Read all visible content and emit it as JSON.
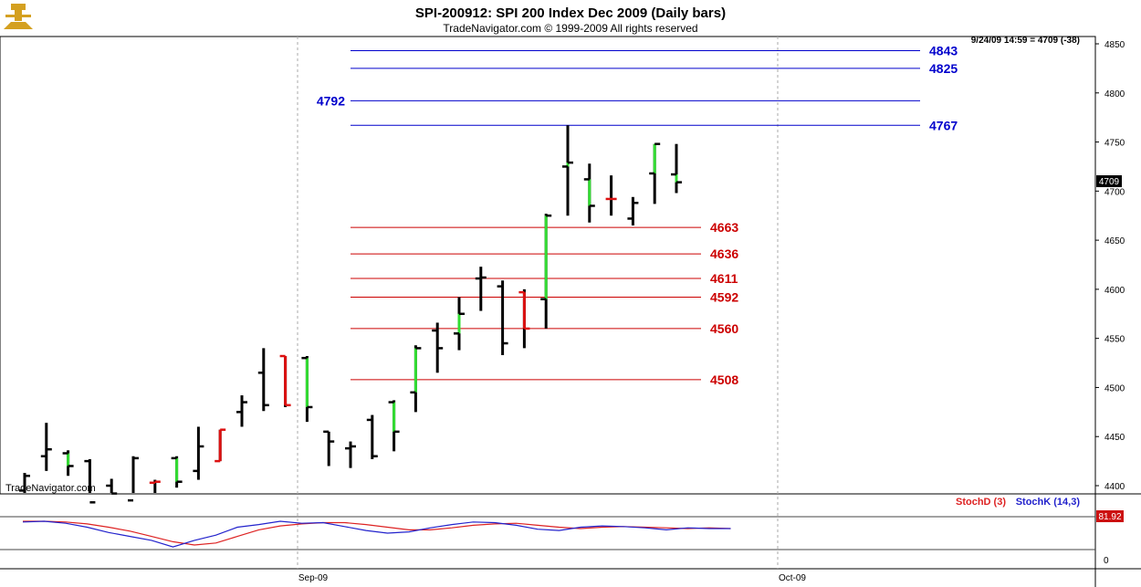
{
  "header": {
    "title": "SPI-200912:  SPI 200 Index Dec 2009  (Daily bars)",
    "subtitle": "TradeNavigator.com © 1999-2009 All rights reserved"
  },
  "info": {
    "last_bar_readout": "9/24/09 14:59 = 4709 (-38)",
    "last_price_tag": "4709"
  },
  "watermark": "TradeNavigator.com",
  "indicator": {
    "legend_d": "StochD (3)",
    "legend_k": "StochK (14,3)",
    "value_tag": "81.92",
    "axis_zero": "0"
  },
  "colors": {
    "up_bar": "#33dd33",
    "down_bar": "#dd1111",
    "neutral_bar": "#000000",
    "resistance": "#0000cc",
    "support": "#cc0000",
    "stoch_d": "#dd2222",
    "stoch_k": "#2222cc"
  },
  "chart_data": {
    "type": "ohlc",
    "title": "SPI-200912:  SPI 200 Index Dec 2009  (Daily bars)",
    "y_axis": {
      "position": "right",
      "ticks": [
        4400,
        4450,
        4500,
        4550,
        4600,
        4650,
        4700,
        4750,
        4800,
        4850
      ],
      "range": [
        4382,
        4866
      ]
    },
    "x_axis": {
      "labels": [
        "Sep-09",
        "Oct-09"
      ],
      "grid": "dashed-vertical"
    },
    "levels_resistance": [
      {
        "value": 4843,
        "label": "4843"
      },
      {
        "value": 4825,
        "label": "4825"
      },
      {
        "value": 4792,
        "label": "4792"
      },
      {
        "value": 4767,
        "label": "4767"
      }
    ],
    "levels_support": [
      {
        "value": 4663,
        "label": "4663"
      },
      {
        "value": 4636,
        "label": "4636"
      },
      {
        "value": 4611,
        "label": "4611"
      },
      {
        "value": 4592,
        "label": "4592"
      },
      {
        "value": 4560,
        "label": "4560"
      },
      {
        "value": 4508,
        "label": "4508"
      }
    ],
    "bars": [
      {
        "high": 4413,
        "low": 4375,
        "open": 4395,
        "close": 4410,
        "color": "black"
      },
      {
        "high": 4464,
        "low": 4415,
        "open": 4430,
        "close": 4437,
        "color": "black"
      },
      {
        "high": 4436,
        "low": 4410,
        "open": 4433,
        "close": 4420,
        "color": "green"
      },
      {
        "high": 4427,
        "low": 4375,
        "open": 4425,
        "close": 4383,
        "color": "black"
      },
      {
        "high": 4407,
        "low": 4375,
        "open": 4400,
        "close": 4392,
        "color": "black"
      },
      {
        "high": 4430,
        "low": 4380,
        "open": 4385,
        "close": 4428,
        "color": "black"
      },
      {
        "high": 4406,
        "low": 4388,
        "open": 4403,
        "close": 4404,
        "color": "red"
      },
      {
        "high": 4430,
        "low": 4398,
        "open": 4428,
        "close": 4404,
        "color": "green"
      },
      {
        "high": 4460,
        "low": 4406,
        "open": 4415,
        "close": 4440,
        "color": "black"
      },
      {
        "high": 4457,
        "low": 4425,
        "open": 4425,
        "close": 4457,
        "color": "red"
      },
      {
        "high": 4492,
        "low": 4460,
        "open": 4475,
        "close": 4485,
        "color": "black"
      },
      {
        "high": 4540,
        "low": 4476,
        "open": 4515,
        "close": 4482,
        "color": "black"
      },
      {
        "high": 4532,
        "low": 4480,
        "open": 4532,
        "close": 4482,
        "color": "red"
      },
      {
        "high": 4532,
        "low": 4465,
        "open": 4530,
        "close": 4480,
        "color": "green"
      },
      {
        "high": 4455,
        "low": 4420,
        "open": 4455,
        "close": 4445,
        "color": "black"
      },
      {
        "high": 4445,
        "low": 4418,
        "open": 4438,
        "close": 4440,
        "color": "black"
      },
      {
        "high": 4472,
        "low": 4427,
        "open": 4467,
        "close": 4430,
        "color": "black"
      },
      {
        "high": 4487,
        "low": 4435,
        "open": 4485,
        "close": 4455,
        "color": "green"
      },
      {
        "high": 4543,
        "low": 4475,
        "open": 4495,
        "close": 4540,
        "color": "green"
      },
      {
        "high": 4566,
        "low": 4515,
        "open": 4558,
        "close": 4540,
        "color": "black"
      },
      {
        "high": 4592,
        "low": 4538,
        "open": 4555,
        "close": 4575,
        "color": "green"
      },
      {
        "high": 4623,
        "low": 4578,
        "open": 4611,
        "close": 4612,
        "color": "green"
      },
      {
        "high": 4609,
        "low": 4533,
        "open": 4603,
        "close": 4545,
        "color": "black"
      },
      {
        "high": 4600,
        "low": 4540,
        "open": 4597,
        "close": 4560,
        "color": "red"
      },
      {
        "high": 4677,
        "low": 4560,
        "open": 4590,
        "close": 4675,
        "color": "green"
      },
      {
        "high": 4767,
        "low": 4675,
        "open": 4725,
        "close": 4729,
        "color": "green"
      },
      {
        "high": 4728,
        "low": 4668,
        "open": 4712,
        "close": 4685,
        "color": "green"
      },
      {
        "high": 4716,
        "low": 4675,
        "open": 4692,
        "close": 4692,
        "color": "red"
      },
      {
        "high": 4694,
        "low": 4665,
        "open": 4672,
        "close": 4688,
        "color": "black"
      },
      {
        "high": 4748,
        "low": 4687,
        "open": 4718,
        "close": 4748,
        "color": "green"
      },
      {
        "high": 4748,
        "low": 4698,
        "open": 4717,
        "close": 4709,
        "color": "green"
      }
    ],
    "indicator_series": [
      {
        "name": "StochD (3)",
        "values": [
          93,
          93,
          92,
          89,
          84,
          78,
          70,
          62,
          57,
          60,
          70,
          80,
          86,
          89,
          91,
          91,
          88,
          84,
          80,
          80,
          83,
          87,
          89,
          90,
          87,
          84,
          82,
          84,
          85,
          84,
          83,
          82,
          83,
          82
        ]
      },
      {
        "name": "StochK (14,3)",
        "values": [
          92,
          93,
          90,
          84,
          76,
          70,
          64,
          54,
          64,
          72,
          84,
          88,
          93,
          90,
          91,
          85,
          79,
          75,
          77,
          83,
          88,
          92,
          91,
          87,
          81,
          79,
          84,
          86,
          85,
          83,
          80,
          83,
          82,
          82
        ]
      }
    ]
  }
}
